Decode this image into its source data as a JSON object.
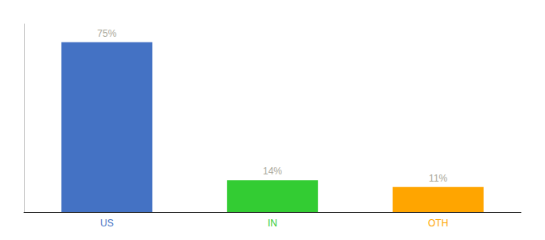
{
  "chart_data": {
    "type": "bar",
    "categories": [
      "US",
      "IN",
      "OTH"
    ],
    "values": [
      75,
      14,
      11
    ],
    "value_labels": [
      "75%",
      "14%",
      "11%"
    ],
    "colors": [
      "#4472C4",
      "#33CC33",
      "#FFA500"
    ],
    "ylim": [
      0,
      83
    ],
    "grid": false,
    "tick_labels": "x",
    "data_labels": true
  }
}
